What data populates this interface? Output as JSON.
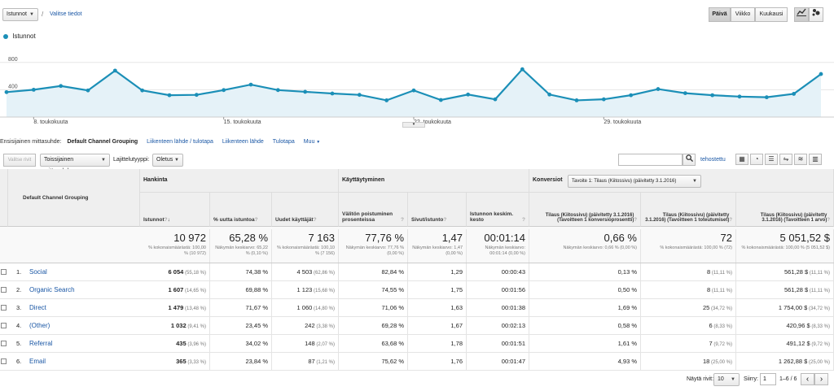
{
  "top": {
    "metric_select": "Istunnot",
    "slash": "/",
    "select_data_link": "Valitse tiedot",
    "period_buttons": [
      "Päivä",
      "Viikko",
      "Kuukausi"
    ]
  },
  "chart_data": {
    "type": "line",
    "legend": "Istunnot",
    "series_color": "#1b8fb7",
    "y_ticks": [
      "800",
      "400"
    ],
    "ylim": [
      0,
      1000
    ],
    "x_tick_labels": [
      "8. toukokuuta",
      "15. toukokuuta",
      "22. toukokuuta",
      "29. toukokuuta"
    ],
    "series": [
      {
        "name": "Istunnot",
        "values": [
          365,
          400,
          455,
          390,
          680,
          390,
          320,
          325,
          395,
          475,
          395,
          370,
          345,
          325,
          245,
          390,
          250,
          330,
          260,
          700,
          330,
          245,
          260,
          320,
          410,
          350,
          320,
          300,
          290,
          340,
          630
        ]
      }
    ]
  },
  "dims": {
    "primary_label": "Ensisijainen mittasuhde:",
    "primary_active": "Default Channel Grouping",
    "links": [
      "Liikenteen lähde / tulotapa",
      "Liikenteen lähde",
      "Tulotapa",
      "Muu"
    ],
    "plot_rows": "Valitse rivit",
    "secondary": "Toissijainen mittasuhde",
    "sort_label": "Lajittelutyyppi:",
    "sort_value": "Oletus",
    "advanced": "tehostettu",
    "search_placeholder": ""
  },
  "table": {
    "dim_header": "Default Channel Grouping",
    "group_acq": "Hankinta",
    "group_beh": "Käyttäytyminen",
    "group_conv": "Konversiot",
    "conv_select": "Tavoite 1: Tilaus (Kiitossivu) (päivitetty 3.1.2016)",
    "headers": [
      "Istunnot",
      "% uutta istuntoa",
      "Uudet käyttäjät",
      "Välitön poistuminen prosenteissa",
      "Sivut/istunto",
      "Istunnon keskim. kesto",
      "Tilaus (Kiitossivu) (päivitetty 3.1.2016) (Tavoitteen 1 konversioprosentti)",
      "Tilaus (Kiitossivu) (päivitetty 3.1.2016) (Tavoitteen 1 toteutumiset)",
      "Tilaus (Kiitossivu) (päivitetty 3.1.2016) (Tavoitteen 1 arvo)"
    ],
    "totals": [
      {
        "big": "10 972",
        "small": "% kokonaismäärästä: 100,00 % (10 972)"
      },
      {
        "big": "65,28 %",
        "small": "Näkymän keskiarvo: 65,22 % (0,10 %)"
      },
      {
        "big": "7 163",
        "small": "% kokonaismäärästä: 100,10 % (7 156)"
      },
      {
        "big": "77,76 %",
        "small": "Näkymän keskiarvo: 77,76 % (0,00 %)"
      },
      {
        "big": "1,47",
        "small": "Näkymän keskiarvo: 1,47 (0,00 %)"
      },
      {
        "big": "00:01:14",
        "small": "Näkymän keskiarvo: 00:01:14 (0,00 %)"
      },
      {
        "big": "0,66 %",
        "small": "Näkymän keskiarvo: 0,66 % (0,00 %)"
      },
      {
        "big": "72",
        "small": "% kokonaismäärästä: 100,00 % (72)"
      },
      {
        "big": "5 051,52 $",
        "small": "% kokonaismäärästä: 100,00 % (5 051,52 $)"
      }
    ],
    "rows": [
      {
        "idx": "1.",
        "name": "Social",
        "sessions": "6 054",
        "sessions_pct": "(55,18 %)",
        "new_pct": "74,38 %",
        "new_users": "4 503",
        "new_users_pct": "(62,86 %)",
        "bounce": "82,84 %",
        "pages": "1,29",
        "duration": "00:00:43",
        "conv_rate": "0,13 %",
        "completions": "8",
        "completions_pct": "(11,11 %)",
        "value": "561,28 $",
        "value_pct": "(11,11 %)"
      },
      {
        "idx": "2.",
        "name": "Organic Search",
        "sessions": "1 607",
        "sessions_pct": "(14,65 %)",
        "new_pct": "69,88 %",
        "new_users": "1 123",
        "new_users_pct": "(15,68 %)",
        "bounce": "74,55 %",
        "pages": "1,75",
        "duration": "00:01:56",
        "conv_rate": "0,50 %",
        "completions": "8",
        "completions_pct": "(11,11 %)",
        "value": "561,28 $",
        "value_pct": "(11,11 %)"
      },
      {
        "idx": "3.",
        "name": "Direct",
        "sessions": "1 479",
        "sessions_pct": "(13,48 %)",
        "new_pct": "71,67 %",
        "new_users": "1 060",
        "new_users_pct": "(14,80 %)",
        "bounce": "71,06 %",
        "pages": "1,63",
        "duration": "00:01:38",
        "conv_rate": "1,69 %",
        "completions": "25",
        "completions_pct": "(34,72 %)",
        "value": "1 754,00 $",
        "value_pct": "(34,72 %)"
      },
      {
        "idx": "4.",
        "name": "(Other)",
        "sessions": "1 032",
        "sessions_pct": "(9,41 %)",
        "new_pct": "23,45 %",
        "new_users": "242",
        "new_users_pct": "(3,38 %)",
        "bounce": "69,28 %",
        "pages": "1,67",
        "duration": "00:02:13",
        "conv_rate": "0,58 %",
        "completions": "6",
        "completions_pct": "(8,33 %)",
        "value": "420,96 $",
        "value_pct": "(8,33 %)"
      },
      {
        "idx": "5.",
        "name": "Referral",
        "sessions": "435",
        "sessions_pct": "(3,96 %)",
        "new_pct": "34,02 %",
        "new_users": "148",
        "new_users_pct": "(2,07 %)",
        "bounce": "63,68 %",
        "pages": "1,78",
        "duration": "00:01:51",
        "conv_rate": "1,61 %",
        "completions": "7",
        "completions_pct": "(9,72 %)",
        "value": "491,12 $",
        "value_pct": "(9,72 %)"
      },
      {
        "idx": "6.",
        "name": "Email",
        "sessions": "365",
        "sessions_pct": "(3,33 %)",
        "new_pct": "23,84 %",
        "new_users": "87",
        "new_users_pct": "(1,21 %)",
        "bounce": "75,62 %",
        "pages": "1,76",
        "duration": "00:01:47",
        "conv_rate": "4,93 %",
        "completions": "18",
        "completions_pct": "(25,00 %)",
        "value": "1 262,88 $",
        "value_pct": "(25,00 %)"
      }
    ]
  },
  "pager": {
    "rows_label": "Näytä rivit:",
    "rows_value": "10",
    "goto_label": "Siirry:",
    "goto_value": "1",
    "range": "1–6 / 6",
    "prev": "‹",
    "next": "›"
  }
}
